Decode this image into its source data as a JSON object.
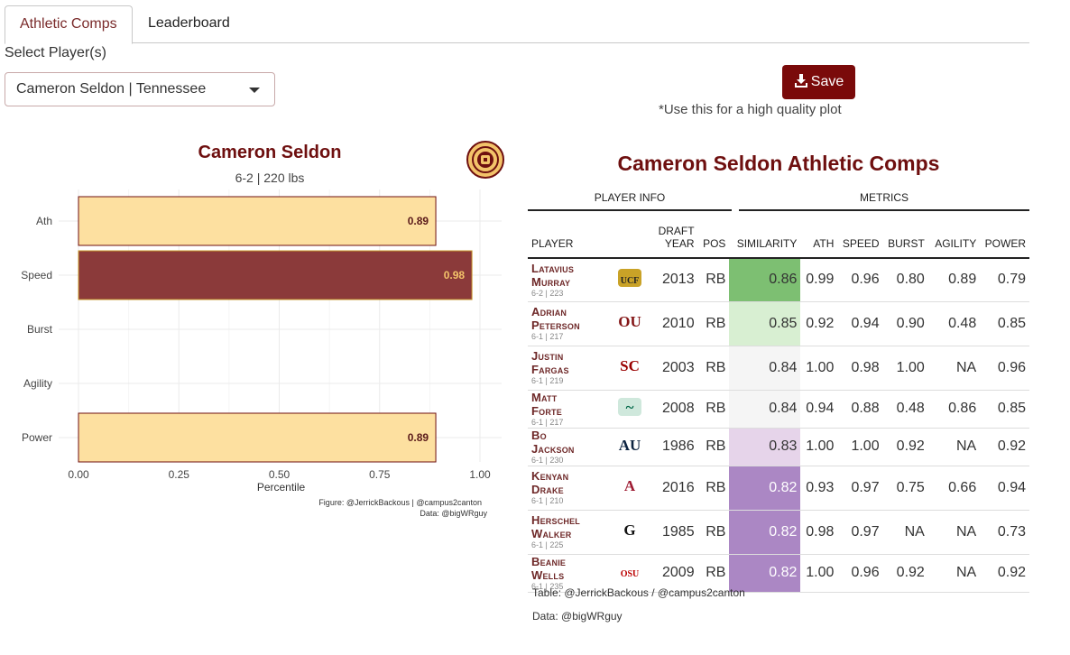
{
  "tabs": [
    {
      "label": "Athletic Comps",
      "active": true
    },
    {
      "label": "Leaderboard",
      "active": false
    }
  ],
  "select": {
    "label": "Select Player(s)",
    "value": "Cameron Seldon | Tennessee"
  },
  "save": {
    "label": "Save",
    "note": "*Use this for a high quality plot"
  },
  "chart": {
    "title": "Cameron Seldon",
    "subtitle": "6-2 | 220 lbs",
    "xlabel": "Percentile",
    "caption_1": "Figure: @JerrickBackous | @campus2canton",
    "caption_2": "Data: @bigWRguy"
  },
  "chart_data": {
    "type": "bar",
    "orientation": "horizontal",
    "categories": [
      "Ath",
      "Speed",
      "Burst",
      "Agility",
      "Power"
    ],
    "values": [
      0.89,
      0.98,
      null,
      null,
      0.89
    ],
    "labels": [
      "0.89",
      "0.98",
      "",
      "",
      "0.89"
    ],
    "highlight": "Speed",
    "xlim": [
      0,
      1
    ],
    "xticks": [
      "0.00",
      "0.25",
      "0.50",
      "0.75",
      "1.00"
    ],
    "xlabel": "Percentile",
    "grid": true,
    "bar_color": "#fde0a0",
    "highlight_color": "#8b3a3a",
    "bar_border": "#6e0f0f"
  },
  "table": {
    "title": "Cameron Seldon Athletic Comps",
    "group_player": "PLAYER INFO",
    "group_metrics": "METRICS",
    "headers": {
      "player": "PLAYER",
      "draft_year_1": "DRAFT",
      "draft_year_2": "YEAR",
      "pos": "POS",
      "similarity": "SIMILARITY",
      "ath": "ATH",
      "speed": "SPEED",
      "burst": "BURST",
      "agility": "AGILITY",
      "power": "POWER"
    },
    "rows": [
      {
        "first": "Latavius",
        "last": "Murray",
        "ht": "6-2 | 223",
        "school_icon": "ucf-logo",
        "year": "2013",
        "pos": "RB",
        "sim": "0.86",
        "sim_color": "#7dbf72",
        "ath": "0.99",
        "speed": "0.96",
        "burst": "0.80",
        "agility": "0.89",
        "power": "0.79"
      },
      {
        "first": "Adrian",
        "last": "Peterson",
        "ht": "6-1 | 217",
        "school_icon": "oklahoma-logo",
        "year": "2010",
        "pos": "RB",
        "sim": "0.85",
        "sim_color": "#d8efd2",
        "ath": "0.92",
        "speed": "0.94",
        "burst": "0.90",
        "agility": "0.48",
        "power": "0.85"
      },
      {
        "first": "Justin",
        "last": "Fargas",
        "ht": "6-1 | 219",
        "school_icon": "usc-logo",
        "year": "2003",
        "pos": "RB",
        "sim": "0.84",
        "sim_color": "#f5f5f5",
        "ath": "1.00",
        "speed": "0.98",
        "burst": "1.00",
        "agility": "NA",
        "power": "0.96"
      },
      {
        "first": "Matt",
        "last": "Forte",
        "ht": "6-1 | 217",
        "school_icon": "tulane-logo",
        "year": "2008",
        "pos": "RB",
        "sim": "0.84",
        "sim_color": "#f5f5f5",
        "ath": "0.94",
        "speed": "0.88",
        "burst": "0.48",
        "agility": "0.86",
        "power": "0.85"
      },
      {
        "first": "Bo",
        "last": "Jackson",
        "ht": "6-1 | 230",
        "school_icon": "auburn-logo",
        "year": "1986",
        "pos": "RB",
        "sim": "0.83",
        "sim_color": "#e6d4ea",
        "ath": "1.00",
        "speed": "1.00",
        "burst": "0.92",
        "agility": "NA",
        "power": "0.92"
      },
      {
        "first": "Kenyan",
        "last": "Drake",
        "ht": "6-1 | 210",
        "school_icon": "alabama-logo",
        "year": "2016",
        "pos": "RB",
        "sim": "0.82",
        "sim_color": "#ab87c4",
        "ath": "0.93",
        "speed": "0.97",
        "burst": "0.75",
        "agility": "0.66",
        "power": "0.94"
      },
      {
        "first": "Herschel",
        "last": "Walker",
        "ht": "6-1 | 225",
        "school_icon": "georgia-logo",
        "year": "1985",
        "pos": "RB",
        "sim": "0.82",
        "sim_color": "#ab87c4",
        "ath": "0.98",
        "speed": "0.97",
        "burst": "NA",
        "agility": "NA",
        "power": "0.73"
      },
      {
        "first": "Beanie",
        "last": "Wells",
        "ht": "6-1 | 235",
        "school_icon": "ohio-state-logo",
        "year": "2009",
        "pos": "RB",
        "sim": "0.82",
        "sim_color": "#ab87c4",
        "ath": "1.00",
        "speed": "0.96",
        "burst": "0.92",
        "agility": "NA",
        "power": "0.92"
      }
    ],
    "footer_1": "Table: @JerrickBackous / @campus2canton",
    "footer_2": "Data: @bigWRguy"
  }
}
